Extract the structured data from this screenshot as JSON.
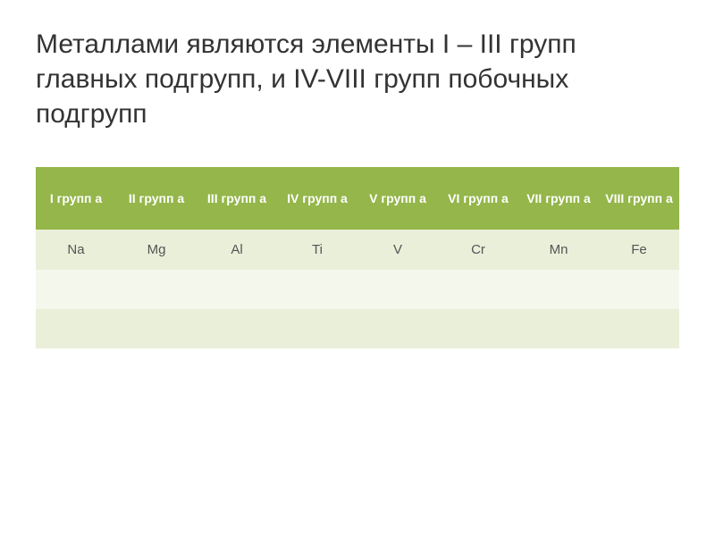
{
  "title": "Металлами являются элементы I – III групп главных подгрупп, и IV-VIII групп побочных подгрупп",
  "table": {
    "type": "table",
    "header_bg": "#94b64a",
    "header_fg": "#ffffff",
    "row_bg": "#e9efd9",
    "row_alt_bg": "#f4f8ec",
    "cell_fg": "#555555",
    "columns": [
      {
        "label": "I групп а"
      },
      {
        "label": "II групп а"
      },
      {
        "label": "III групп а"
      },
      {
        "label": "IV групп а"
      },
      {
        "label": "V групп а"
      },
      {
        "label": "VI групп а"
      },
      {
        "label": "VII групп а"
      },
      {
        "label": "VIII групп а"
      }
    ],
    "rows": [
      [
        "Na",
        "Mg",
        "Al",
        "Ti",
        "V",
        "Cr",
        "Mn",
        "Fe"
      ],
      [
        "",
        "",
        "",
        "",
        "",
        "",
        "",
        ""
      ],
      [
        "",
        "",
        "",
        "",
        "",
        "",
        "",
        ""
      ]
    ]
  }
}
